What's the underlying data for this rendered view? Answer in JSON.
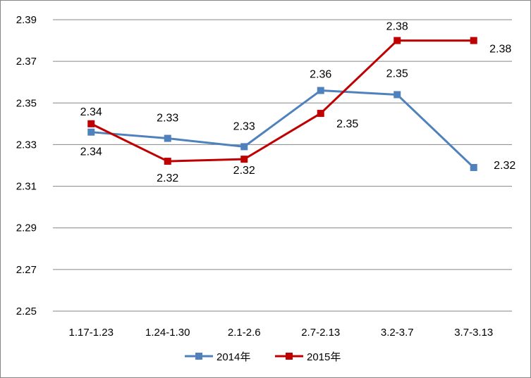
{
  "chart_data": {
    "type": "line",
    "categories": [
      "1.17-1.23",
      "1.24-1.30",
      "2.1-2.6",
      "2.7-2.13",
      "3.2-3.7",
      "3.7-3.13"
    ],
    "ylim": [
      2.25,
      2.39
    ],
    "yticks": [
      "2.25",
      "2.27",
      "2.29",
      "2.31",
      "2.33",
      "2.35",
      "2.37",
      "2.39"
    ],
    "grid": true,
    "legend": "bottom",
    "series": [
      {
        "name": "2014年",
        "color": "#4F81BD",
        "marker": "square",
        "values": [
          2.336,
          2.333,
          2.329,
          2.356,
          2.354,
          2.319
        ],
        "labels": [
          "2.34",
          "2.33",
          "2.33",
          "2.36",
          "2.35",
          "2.32"
        ]
      },
      {
        "name": "2015年",
        "color": "#C00000",
        "marker": "square",
        "values": [
          2.34,
          2.322,
          2.323,
          2.345,
          2.38,
          2.38
        ],
        "labels": [
          "2.34",
          "2.32",
          "2.32",
          "2.35",
          "2.38",
          "2.38"
        ]
      }
    ]
  }
}
